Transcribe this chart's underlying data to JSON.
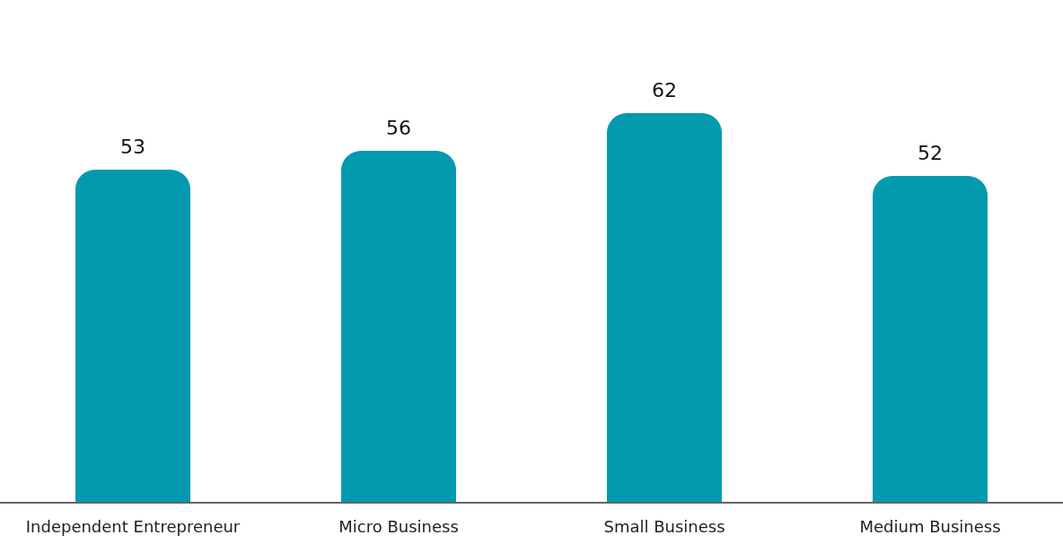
{
  "chart_data": {
    "type": "bar",
    "categories": [
      "Independent Entrepreneur",
      "Micro Business",
      "Small Business",
      "Medium Business"
    ],
    "values": [
      53,
      56,
      62,
      52
    ],
    "color": "#039ab0",
    "data_labels": true,
    "tick_labels": "x"
  }
}
